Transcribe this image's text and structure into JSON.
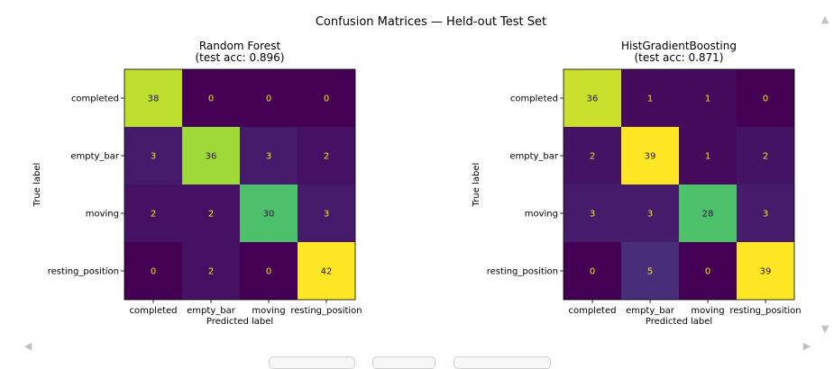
{
  "figure_title": "Confusion Matrices — Held-out Test Set",
  "chart_data": [
    {
      "type": "heatmap",
      "title": "Random Forest\n(test acc: 0.896)",
      "xlabel": "Predicted label",
      "ylabel": "True label",
      "x_categories": [
        "completed",
        "empty_bar",
        "moving",
        "resting_position"
      ],
      "y_categories": [
        "completed",
        "empty_bar",
        "moving",
        "resting_position"
      ],
      "values": [
        [
          38,
          0,
          0,
          0
        ],
        [
          3,
          36,
          3,
          2
        ],
        [
          2,
          2,
          30,
          3
        ],
        [
          0,
          2,
          0,
          42
        ]
      ],
      "colormap": "viridis",
      "vmin": 0,
      "vmax": 42
    },
    {
      "type": "heatmap",
      "title": "HistGradientBoosting\n(test acc: 0.871)",
      "xlabel": "Predicted label",
      "ylabel": "True label",
      "x_categories": [
        "completed",
        "empty_bar",
        "moving",
        "resting_position"
      ],
      "y_categories": [
        "completed",
        "empty_bar",
        "moving",
        "resting_position"
      ],
      "values": [
        [
          36,
          1,
          1,
          0
        ],
        [
          2,
          39,
          1,
          2
        ],
        [
          3,
          3,
          28,
          3
        ],
        [
          0,
          5,
          0,
          39
        ]
      ],
      "colormap": "viridis",
      "vmin": 0,
      "vmax": 39
    }
  ],
  "scroll_icons": {
    "up": "▲",
    "down": "▼",
    "left": "◀",
    "right": "▶"
  },
  "colors": {
    "label_dark": "#2b0f3f",
    "label_light": "#f5e51a",
    "frame": "#000000"
  }
}
